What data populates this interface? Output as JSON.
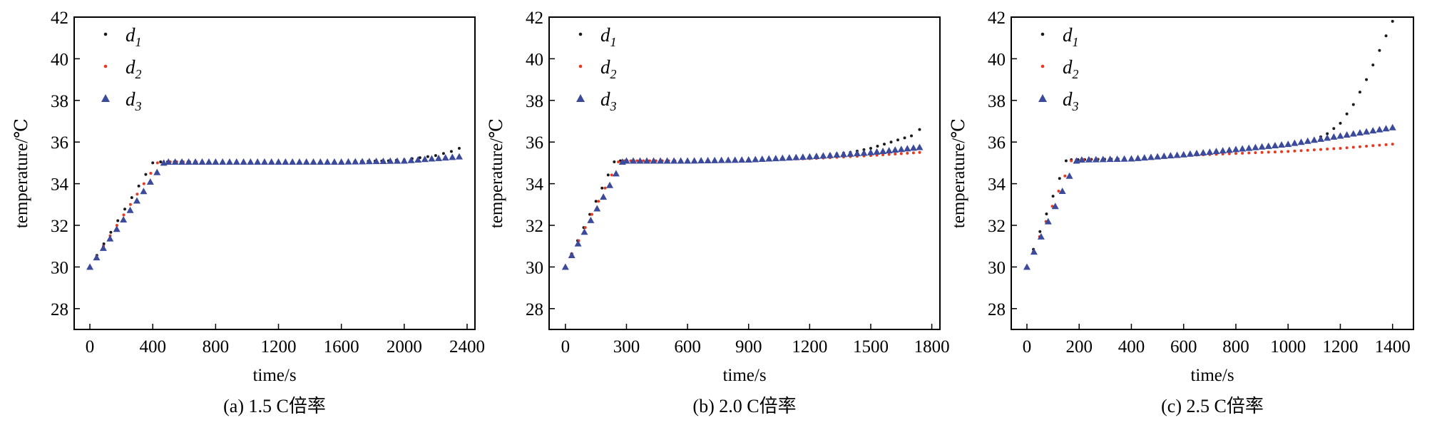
{
  "chart_data": [
    {
      "type": "scatter",
      "caption": "(a) 1.5 C倍率",
      "xlabel": "time/s",
      "ylabel": "temperature/℃",
      "xlim": [
        -100,
        2450
      ],
      "ylim": [
        27,
        42
      ],
      "xticks": [
        0,
        400,
        800,
        1200,
        1600,
        2000,
        2400
      ],
      "yticks": [
        28,
        30,
        32,
        34,
        36,
        38,
        40,
        42
      ],
      "legend_position": "top-left",
      "series": [
        {
          "name": "d",
          "subscript": "1",
          "marker": "dot",
          "color": "#1a1a1a",
          "x": [
            0,
            400,
            450,
            800,
            1200,
            1600,
            1900,
            2000,
            2100,
            2200,
            2300,
            2350
          ],
          "y": [
            30,
            35.0,
            35.05,
            35.05,
            35.05,
            35.05,
            35.1,
            35.15,
            35.25,
            35.35,
            35.55,
            35.7
          ]
        },
        {
          "name": "d",
          "subscript": "2",
          "marker": "dot",
          "color": "#e8391f",
          "x": [
            0,
            430,
            470,
            800,
            1200,
            1600,
            2000,
            2350
          ],
          "y": [
            30,
            35.0,
            35.05,
            35.05,
            35.05,
            35.05,
            35.1,
            35.3
          ]
        },
        {
          "name": "d",
          "subscript": "3",
          "marker": "triangle",
          "color": "#3b4a9a",
          "x": [
            0,
            470,
            500,
            800,
            1200,
            1600,
            2000,
            2350
          ],
          "y": [
            30,
            35.0,
            35.05,
            35.05,
            35.05,
            35.05,
            35.1,
            35.3
          ]
        }
      ]
    },
    {
      "type": "scatter",
      "caption": "(b) 2.0 C倍率",
      "xlabel": "time/s",
      "ylabel": "temperature/℃",
      "xlim": [
        -80,
        1840
      ],
      "ylim": [
        27,
        42
      ],
      "xticks": [
        0,
        300,
        600,
        900,
        1200,
        1500,
        1800
      ],
      "yticks": [
        28,
        30,
        32,
        34,
        36,
        38,
        40,
        42
      ],
      "legend_position": "top-left",
      "series": [
        {
          "name": "d",
          "subscript": "1",
          "marker": "dot",
          "color": "#1a1a1a",
          "x": [
            0,
            240,
            270,
            600,
            900,
            1200,
            1400,
            1500,
            1600,
            1700,
            1740
          ],
          "y": [
            30,
            35.05,
            35.1,
            35.1,
            35.15,
            35.3,
            35.5,
            35.7,
            36.0,
            36.3,
            36.6
          ]
        },
        {
          "name": "d",
          "subscript": "2",
          "marker": "dot",
          "color": "#e8391f",
          "x": [
            0,
            260,
            290,
            600,
            900,
            1200,
            1500,
            1740
          ],
          "y": [
            30,
            35.05,
            35.1,
            35.1,
            35.15,
            35.2,
            35.35,
            35.5
          ]
        },
        {
          "name": "d",
          "subscript": "3",
          "marker": "triangle",
          "color": "#3b4a9a",
          "x": [
            0,
            280,
            300,
            600,
            900,
            1200,
            1500,
            1740
          ],
          "y": [
            30,
            35.05,
            35.1,
            35.1,
            35.15,
            35.3,
            35.5,
            35.75
          ]
        }
      ]
    },
    {
      "type": "scatter",
      "caption": "(c) 2.5 C倍率",
      "xlabel": "time/s",
      "ylabel": "temperature/℃",
      "xlim": [
        -60,
        1480
      ],
      "ylim": [
        27,
        42
      ],
      "xticks": [
        0,
        200,
        400,
        600,
        800,
        1000,
        1200,
        1400
      ],
      "yticks": [
        28,
        30,
        32,
        34,
        36,
        38,
        40,
        42
      ],
      "legend_position": "top-left",
      "series": [
        {
          "name": "d",
          "subscript": "1",
          "marker": "dot",
          "color": "#1a1a1a",
          "x": [
            0,
            150,
            170,
            400,
            600,
            800,
            1000,
            1100,
            1150,
            1200,
            1250,
            1300,
            1350,
            1400
          ],
          "y": [
            30,
            35.1,
            35.15,
            35.2,
            35.4,
            35.6,
            35.85,
            36.1,
            36.4,
            36.9,
            37.8,
            39.0,
            40.4,
            41.8
          ]
        },
        {
          "name": "d",
          "subscript": "2",
          "marker": "dot",
          "color": "#e8391f",
          "x": [
            0,
            170,
            190,
            400,
            600,
            800,
            1000,
            1200,
            1400
          ],
          "y": [
            30,
            35.1,
            35.15,
            35.2,
            35.35,
            35.45,
            35.55,
            35.7,
            35.9
          ]
        },
        {
          "name": "d",
          "subscript": "3",
          "marker": "triangle",
          "color": "#3b4a9a",
          "x": [
            0,
            190,
            210,
            400,
            600,
            800,
            1000,
            1200,
            1400
          ],
          "y": [
            30,
            35.1,
            35.15,
            35.2,
            35.4,
            35.65,
            35.9,
            36.3,
            36.7
          ]
        }
      ]
    }
  ]
}
